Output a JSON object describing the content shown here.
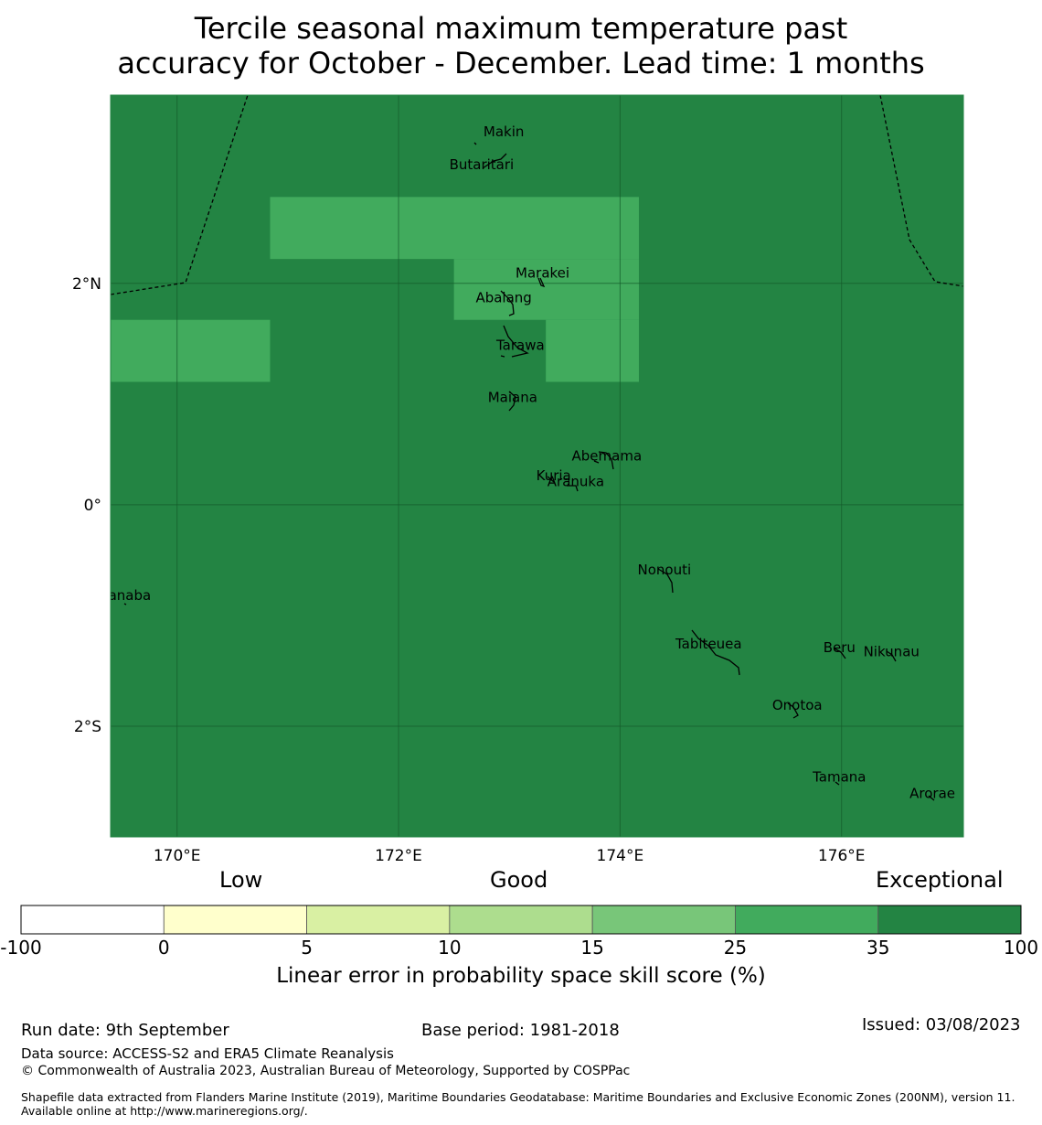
{
  "title_line1": "Tercile seasonal maximum temperature past",
  "title_line2": "accuracy for October - December. Lead time: 1 months",
  "map": {
    "lon_range": [
      169.4,
      177.1
    ],
    "lat_range": [
      -3.0,
      3.7
    ],
    "lon_ticks": [
      {
        "v": 170,
        "label": "170°E"
      },
      {
        "v": 172,
        "label": "172°E"
      },
      {
        "v": 174,
        "label": "174°E"
      },
      {
        "v": 176,
        "label": "176°E"
      }
    ],
    "lat_ticks": [
      {
        "v": 2,
        "label": "2°N"
      },
      {
        "v": 0,
        "label": "0°"
      },
      {
        "v": -2,
        "label": "2°S"
      }
    ],
    "background_color": "#238443",
    "patch_color": "#41ab5d",
    "skill_patches": [
      {
        "lon": [
          170.84,
          174.17
        ],
        "lat": [
          2.22,
          2.78
        ],
        "category": "25-35"
      },
      {
        "lon": [
          172.5,
          174.17
        ],
        "lat": [
          1.67,
          2.22
        ],
        "category": "25-35"
      },
      {
        "lon": [
          173.33,
          174.17
        ],
        "lat": [
          1.11,
          1.67
        ],
        "category": "25-35"
      },
      {
        "lon": [
          169.4,
          170.84
        ],
        "lat": [
          1.11,
          1.67
        ],
        "category": "25-35"
      }
    ],
    "islands": [
      {
        "name": "Makin",
        "lon": 172.95,
        "lat": 3.33
      },
      {
        "name": "Butaritari",
        "lon": 172.75,
        "lat": 3.03
      },
      {
        "name": "Marakei",
        "lon": 173.3,
        "lat": 2.05
      },
      {
        "name": "Abaiang",
        "lon": 172.95,
        "lat": 1.83
      },
      {
        "name": "Tarawa",
        "lon": 173.1,
        "lat": 1.4
      },
      {
        "name": "Maiana",
        "lon": 173.03,
        "lat": 0.93
      },
      {
        "name": "Abemama",
        "lon": 173.88,
        "lat": 0.4
      },
      {
        "name": "Kuria",
        "lon": 173.4,
        "lat": 0.22
      },
      {
        "name": "Aranuka",
        "lon": 173.6,
        "lat": 0.17
      },
      {
        "name": "Nonouti",
        "lon": 174.4,
        "lat": -0.63
      },
      {
        "name": "Banaba",
        "lon": 169.53,
        "lat": -0.86
      },
      {
        "name": "Beru",
        "lon": 175.98,
        "lat": -1.33
      },
      {
        "name": "Nikunau",
        "lon": 176.45,
        "lat": -1.37
      },
      {
        "name": "Tabiteuea",
        "lon": 174.8,
        "lat": -1.3
      },
      {
        "name": "Onotoa",
        "lon": 175.6,
        "lat": -1.85
      },
      {
        "name": "Tamana",
        "lon": 175.98,
        "lat": -2.5
      },
      {
        "name": "Arorae",
        "lon": 176.82,
        "lat": -2.65
      }
    ]
  },
  "colorbar": {
    "category_labels": [
      "Low",
      "Good",
      "Exceptional"
    ],
    "bounds": [
      "-100",
      "0",
      "5",
      "10",
      "15",
      "25",
      "35",
      "100"
    ],
    "colors": [
      "#ffffff",
      "#ffffcc",
      "#d9f0a3",
      "#addd8e",
      "#78c679",
      "#41ab5d",
      "#238443"
    ],
    "label": "Linear error in probability space skill score (%)"
  },
  "footer": {
    "run_date": "Run date: 9th September",
    "base_period": "Base period: 1981-2018",
    "issued": "Issued: 03/08/2023",
    "data_source": "Data source: ACCESS-S2 and ERA5 Climate Reanalysis",
    "copyright": "© Commonwealth of Australia 2023, Australian Bureau of Meteorology, Supported by COSPPac",
    "shapefile": "Shapefile data extracted from Flanders Marine Institute (2019), Maritime Boundaries Geodatabase: Maritime Boundaries and Exclusive Economic Zones (200NM), version 11. Available online at http://www.marineregions.org/."
  }
}
